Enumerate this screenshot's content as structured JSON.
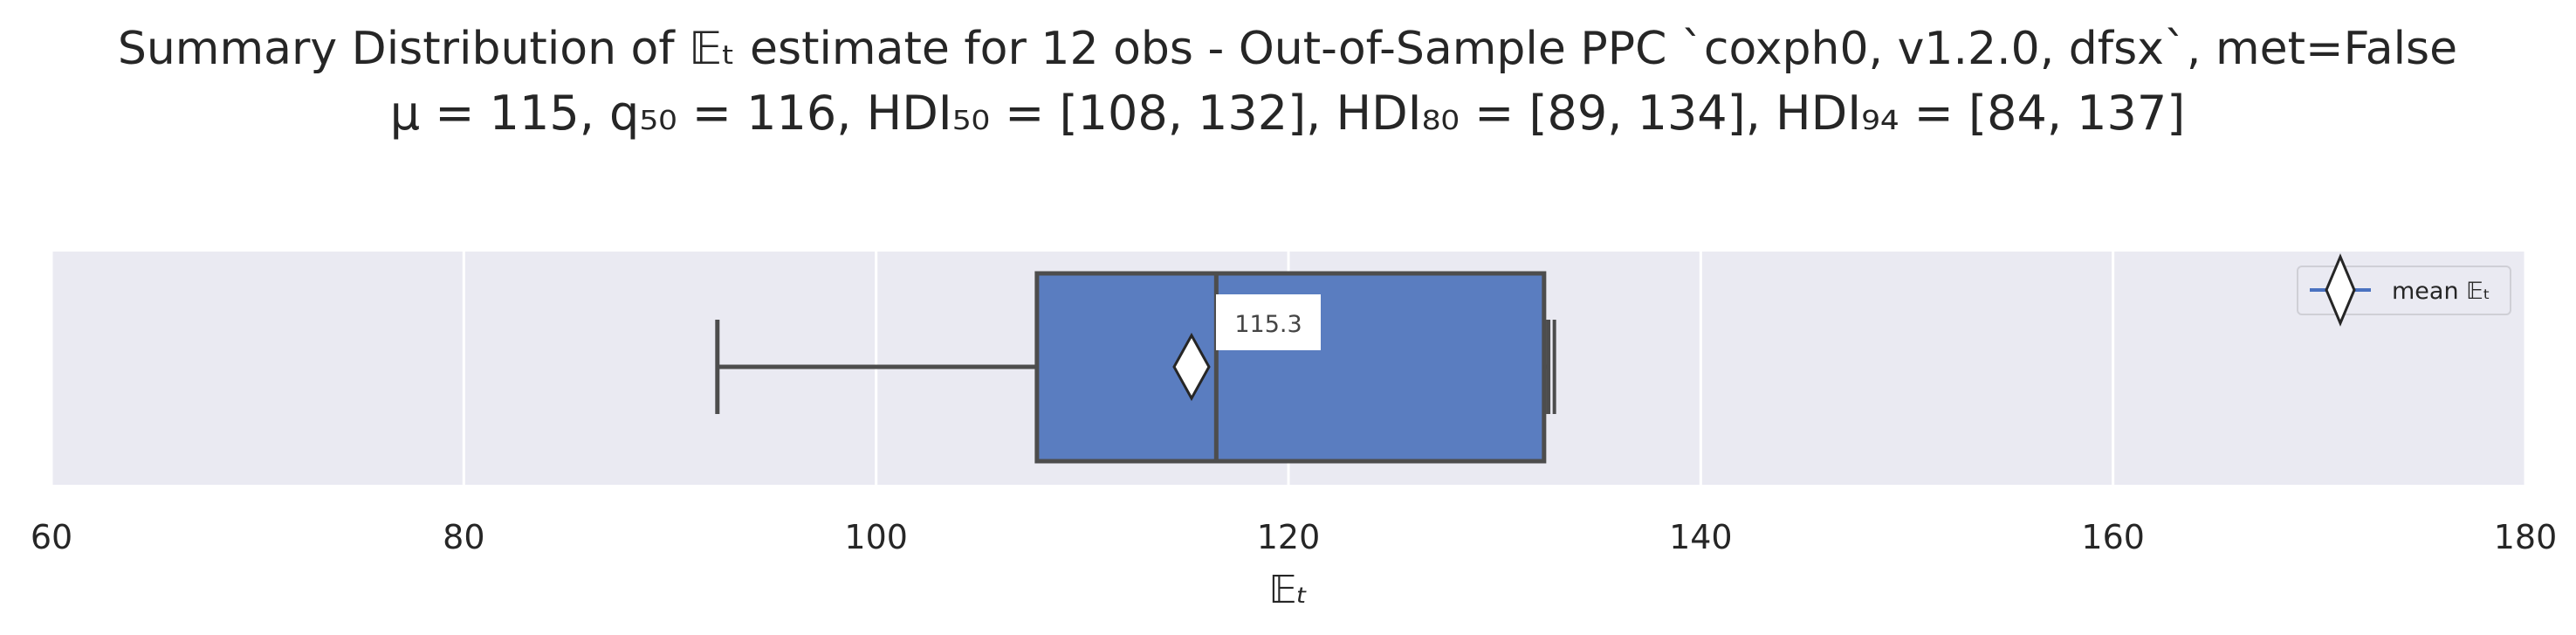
{
  "title": {
    "line1": "Summary Distribution of 𝔼ₜ estimate for 12 obs - Out-of-Sample PPC `coxph0, v1.2.0, dfsx`, met=False",
    "line2": "μ = 115, q₅₀ = 116, HDI₅₀ = [108, 132], HDI₈₀ = [89, 134], HDI₉₄ = [84, 137]"
  },
  "chart_data": {
    "type": "box",
    "orientation": "horizontal",
    "xlabel": "𝔼ₜ",
    "ylabel": "",
    "xlim": [
      60,
      180
    ],
    "xticks": [
      60,
      80,
      100,
      120,
      140,
      160,
      180
    ],
    "grid": true,
    "box": {
      "whisker_low": 92.3,
      "q1": 107.8,
      "median": 116.5,
      "q3": 132.4,
      "whisker_high": 132.6,
      "outliers": [
        132.9
      ]
    },
    "mean": 115.3,
    "mean_label": "115.3",
    "legend": {
      "position": "top-right",
      "entries": [
        "mean 𝔼ₜ"
      ]
    },
    "colors": {
      "box_fill": "#5a7dc0",
      "box_edge": "#4d4d4d",
      "plot_background": "#eaeaf2",
      "grid": "#ffffff",
      "mean_marker_fill": "#ffffff",
      "legend_line": "#4a72c0"
    }
  }
}
